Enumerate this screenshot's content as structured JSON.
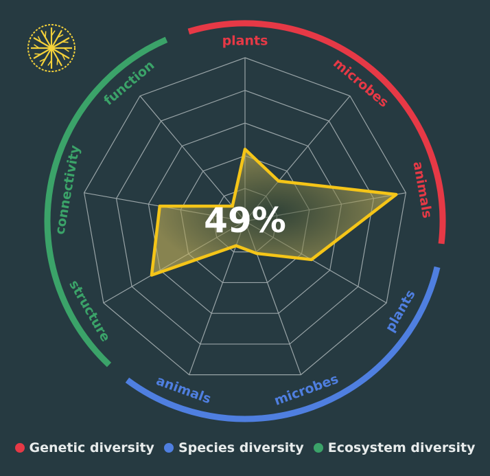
{
  "chart_data": {
    "type": "radar",
    "center_label": "49%",
    "axes": [
      {
        "label": "plants",
        "group": "Genetic diversity",
        "value": 0.44
      },
      {
        "label": "microbes",
        "group": "Genetic diversity",
        "value": 0.32
      },
      {
        "label": "animals",
        "group": "Genetic diversity",
        "value": 0.94
      },
      {
        "label": "plants",
        "group": "Species diversity",
        "value": 0.47
      },
      {
        "label": "microbes",
        "group": "Species diversity",
        "value": 0.21
      },
      {
        "label": "animals",
        "group": "Species diversity",
        "value": 0.16
      },
      {
        "label": "structure",
        "group": "Ecosystem diversity",
        "value": 0.66
      },
      {
        "label": "connectivity",
        "group": "Ecosystem diversity",
        "value": 0.53
      },
      {
        "label": "function",
        "group": "Ecosystem diversity",
        "value": 0.12
      }
    ],
    "rlim": [
      0,
      1
    ],
    "rings": 5,
    "groups": [
      {
        "name": "Genetic diversity",
        "color": "#e63946"
      },
      {
        "name": "Species diversity",
        "color": "#4f7fe0"
      },
      {
        "name": "Ecosystem diversity",
        "color": "#3ba369"
      }
    ],
    "series_color": "#f5c518",
    "legend_position": "bottom"
  },
  "logo": {
    "icon": "snowflake-tree-logo-icon",
    "color": "#f5d23a"
  }
}
